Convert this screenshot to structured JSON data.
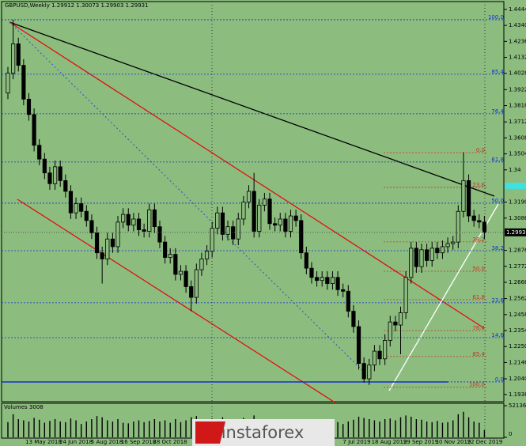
{
  "chart_data": {
    "type": "candlestick",
    "title": "GBPUSD,Weekly  1.29912 1.30073 1.29903 1.29931",
    "ylim": [
      1.1891,
      1.4495
    ],
    "yticks": [
      {
        "value": 1.4444,
        "label": "1.44440"
      },
      {
        "value": 1.434,
        "label": "1.43400"
      },
      {
        "value": 1.4236,
        "label": "1.42360"
      },
      {
        "value": 1.4132,
        "label": "1.41320"
      },
      {
        "value": 1.4028,
        "label": "1.40280"
      },
      {
        "value": 1.3922,
        "label": "1.39220"
      },
      {
        "value": 1.3818,
        "label": "1.38180"
      },
      {
        "value": 1.3712,
        "label": "1.37120"
      },
      {
        "value": 1.3608,
        "label": "1.36080"
      },
      {
        "value": 1.3504,
        "label": "1.35040"
      },
      1.34,
      {
        "value": 1.319,
        "label": "1.31900"
      },
      {
        "value": 1.3086,
        "label": "1.30860"
      },
      {
        "value": 1.2876,
        "label": "1.28760"
      },
      {
        "value": 1.2772,
        "label": "1.27720"
      },
      {
        "value": 1.2668,
        "label": "1.26680"
      },
      {
        "value": 1.2562,
        "label": "1.25620"
      },
      {
        "value": 1.2458,
        "label": "1.24580"
      },
      {
        "value": 1.2354,
        "label": "1.23540"
      },
      {
        "value": 1.225,
        "label": "1.22500"
      },
      {
        "value": 1.2146,
        "label": "1.21460"
      },
      {
        "value": 1.204,
        "label": "1.20400"
      },
      {
        "value": 1.1938,
        "label": "1.19380"
      }
    ],
    "current_price": {
      "value": 1.29931,
      "label": "1.29931"
    },
    "x_labels": [
      "13 May 2018",
      "24 Jun 2018",
      "5 Aug 2018",
      "16 Sep 2018",
      "28 Oct 2018",
      "7 Jul 2019",
      "18 Aug 2019",
      "29 Sep 2019",
      "10 Nov 2019",
      "22 Dec 2019"
    ],
    "candles": {
      "open": [
        1.39,
        1.403,
        1.422,
        1.408,
        1.386,
        1.376,
        1.356,
        1.347,
        1.338,
        1.331,
        1.342,
        1.333,
        1.326,
        1.312,
        1.318,
        1.313,
        1.307,
        1.299,
        1.286,
        1.282,
        1.295,
        1.29,
        1.306,
        1.311,
        1.304,
        1.308,
        1.301,
        1.3,
        1.314,
        1.303,
        1.293,
        1.283,
        1.285,
        1.272,
        1.274,
        1.264,
        1.257,
        1.275,
        1.282,
        1.287,
        1.302,
        1.312,
        1.298,
        1.303,
        1.295,
        1.308,
        1.319,
        1.326,
        1.3,
        1.317,
        1.321,
        1.305,
        1.304,
        1.308,
        1.3,
        1.31,
        1.307,
        1.286,
        1.276,
        1.27,
        1.268,
        1.27,
        1.266,
        1.27,
        1.262,
        1.261,
        1.248,
        1.238,
        1.214,
        1.204,
        1.213,
        1.222,
        1.217,
        1.229,
        1.241,
        1.239,
        1.247,
        1.27,
        1.289,
        1.277,
        1.288,
        1.281,
        1.289,
        1.286,
        1.29,
        1.292,
        1.293,
        1.313,
        1.333,
        1.31,
        1.307,
        1.306
      ],
      "high": [
        1.407,
        1.4376,
        1.426,
        1.412,
        1.39,
        1.38,
        1.36,
        1.351,
        1.342,
        1.346,
        1.346,
        1.337,
        1.33,
        1.322,
        1.322,
        1.317,
        1.311,
        1.303,
        1.29,
        1.299,
        1.299,
        1.31,
        1.315,
        1.315,
        1.312,
        1.312,
        1.305,
        1.318,
        1.318,
        1.307,
        1.297,
        1.289,
        1.289,
        1.278,
        1.278,
        1.268,
        1.279,
        1.286,
        1.291,
        1.306,
        1.316,
        1.316,
        1.307,
        1.307,
        1.312,
        1.323,
        1.33,
        1.338,
        1.321,
        1.325,
        1.325,
        1.309,
        1.312,
        1.312,
        1.314,
        1.314,
        1.311,
        1.29,
        1.28,
        1.274,
        1.274,
        1.274,
        1.274,
        1.274,
        1.266,
        1.265,
        1.252,
        1.242,
        1.218,
        1.217,
        1.226,
        1.226,
        1.233,
        1.245,
        1.245,
        1.251,
        1.274,
        1.293,
        1.293,
        1.292,
        1.292,
        1.293,
        1.293,
        1.294,
        1.296,
        1.297,
        1.317,
        1.3515,
        1.337,
        1.314,
        1.311,
        1.31
      ],
      "low": [
        1.386,
        1.399,
        1.404,
        1.382,
        1.372,
        1.352,
        1.343,
        1.334,
        1.327,
        1.327,
        1.329,
        1.322,
        1.308,
        1.308,
        1.309,
        1.303,
        1.295,
        1.282,
        1.266,
        1.278,
        1.286,
        1.286,
        1.302,
        1.3,
        1.3,
        1.297,
        1.296,
        1.296,
        1.299,
        1.289,
        1.279,
        1.279,
        1.268,
        1.268,
        1.26,
        1.248,
        1.253,
        1.271,
        1.278,
        1.283,
        1.298,
        1.294,
        1.294,
        1.291,
        1.291,
        1.304,
        1.315,
        1.296,
        1.296,
        1.313,
        1.301,
        1.3,
        1.3,
        1.296,
        1.296,
        1.303,
        1.282,
        1.272,
        1.266,
        1.264,
        1.264,
        1.262,
        1.262,
        1.258,
        1.257,
        1.244,
        1.234,
        1.21,
        1.2015,
        1.2,
        1.209,
        1.213,
        1.213,
        1.225,
        1.235,
        1.22,
        1.243,
        1.266,
        1.273,
        1.273,
        1.277,
        1.277,
        1.282,
        1.282,
        1.286,
        1.288,
        1.289,
        1.309,
        1.306,
        1.303,
        1.302,
        1.295
      ],
      "close": [
        1.403,
        1.422,
        1.408,
        1.386,
        1.376,
        1.356,
        1.347,
        1.338,
        1.331,
        1.342,
        1.333,
        1.326,
        1.312,
        1.318,
        1.313,
        1.307,
        1.299,
        1.286,
        1.282,
        1.295,
        1.29,
        1.306,
        1.311,
        1.304,
        1.308,
        1.301,
        1.3,
        1.314,
        1.303,
        1.293,
        1.283,
        1.285,
        1.272,
        1.274,
        1.264,
        1.257,
        1.275,
        1.282,
        1.287,
        1.302,
        1.312,
        1.298,
        1.303,
        1.295,
        1.308,
        1.319,
        1.326,
        1.3,
        1.317,
        1.321,
        1.305,
        1.304,
        1.308,
        1.3,
        1.31,
        1.307,
        1.286,
        1.276,
        1.27,
        1.268,
        1.27,
        1.266,
        1.27,
        1.262,
        1.261,
        1.248,
        1.238,
        1.214,
        1.204,
        1.213,
        1.222,
        1.217,
        1.229,
        1.241,
        1.239,
        1.247,
        1.27,
        1.289,
        1.277,
        1.288,
        1.281,
        1.289,
        1.286,
        1.29,
        1.292,
        1.293,
        1.313,
        1.333,
        1.31,
        1.307,
        1.306,
        1.2993
      ]
    },
    "fib_blue": [
      {
        "label": "100.0",
        "value": 1.4377
      },
      {
        "label": "85.4",
        "value": 1.4022
      },
      {
        "label": "76.4",
        "value": 1.3765
      },
      {
        "label": "61.8",
        "value": 1.3451
      },
      {
        "label": "50.0",
        "value": 1.3183
      },
      {
        "label": "38.2",
        "value": 1.2874
      },
      {
        "label": "23.6",
        "value": 1.2535
      },
      {
        "label": "14.6",
        "value": 1.2308
      },
      {
        "label": "0.0",
        "value": 1.202
      }
    ],
    "fib_red": [
      {
        "label": "0.0",
        "value": 1.3512
      },
      {
        "label": "23.6",
        "value": 1.3286
      },
      {
        "label": "38.2",
        "value": 1.2931
      },
      {
        "label": "50.0",
        "value": 1.274
      },
      {
        "label": "61.8",
        "value": 1.2555
      },
      {
        "label": "76.4",
        "value": 1.2354
      },
      {
        "label": "85.4",
        "value": 1.2185
      },
      {
        "label": "100.0",
        "value": 1.1985
      }
    ],
    "volume": {
      "title": "Volumes 3008",
      "ylim": [
        0,
        521365
      ],
      "yticks": [
        521365,
        0
      ],
      "values": [
        250000,
        380000,
        300000,
        280000,
        260000,
        320000,
        290000,
        240000,
        270000,
        300000,
        260000,
        250000,
        310000,
        280000,
        220000,
        260000,
        300000,
        350000,
        330000,
        280000,
        260000,
        300000,
        240000,
        230000,
        260000,
        280000,
        250000,
        270000,
        300000,
        260000,
        280000,
        240000,
        300000,
        250000,
        280000,
        330000,
        350000,
        290000,
        260000,
        310000,
        300000,
        330000,
        270000,
        250000,
        280000,
        320000,
        300000,
        360000,
        290000,
        280000,
        300000,
        250000,
        230000,
        270000,
        260000,
        240000,
        300000,
        280000,
        250000,
        230000,
        220000,
        240000,
        230000,
        250000,
        220000,
        260000,
        290000,
        340000,
        320000,
        300000,
        280000,
        260000,
        300000,
        310000,
        280000,
        330000,
        360000,
        340000,
        300000,
        290000,
        260000,
        250000,
        270000,
        240000,
        250000,
        280000,
        380000,
        420000,
        330000,
        260000,
        240000,
        120000
      ]
    }
  }
}
